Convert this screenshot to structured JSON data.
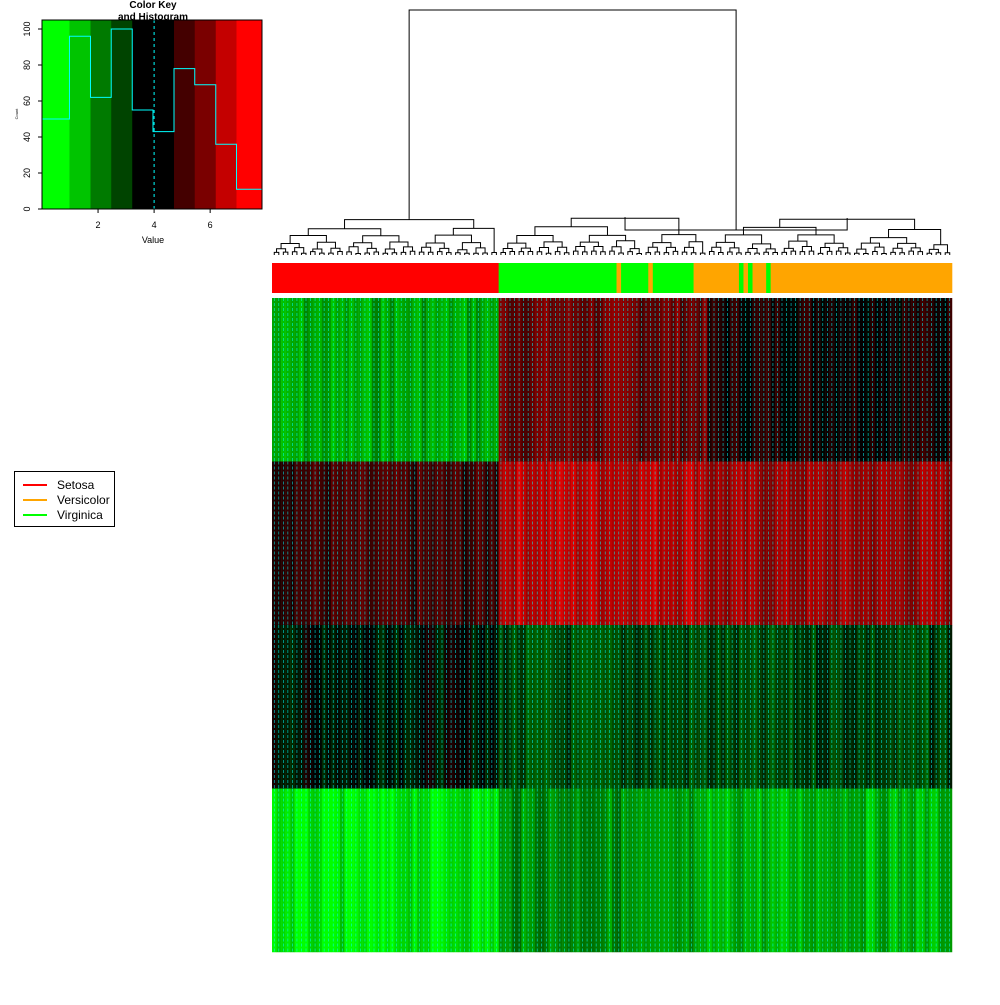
{
  "chart_data": [
    {
      "type": "bar",
      "role": "color-key",
      "title_line1": "Color Key",
      "title_line2": "and Histogram",
      "xlabel": "Value",
      "ylabel": "Count",
      "xlim": [
        0,
        7.85
      ],
      "ylim": [
        0,
        105
      ],
      "x_ticks": [
        "2",
        "4",
        "6"
      ],
      "y_ticks": [
        "0",
        "20",
        "40",
        "60",
        "80",
        "100"
      ],
      "bin_edges": [
        0,
        0.98,
        1.73,
        2.47,
        3.22,
        3.96,
        4.71,
        5.45,
        6.2,
        6.94,
        7.85
      ],
      "values": [
        50,
        96,
        62,
        100,
        55,
        43,
        78,
        69,
        36,
        11
      ],
      "bin_colors": [
        "#00ff00",
        "#00c400",
        "#007a00",
        "#004400",
        "#000000",
        "#000000",
        "#440000",
        "#7a0000",
        "#c40000",
        "#ff0000"
      ],
      "density_line_color": "#00ffff",
      "median_marker": 4
    },
    {
      "type": "heatmap",
      "role": "main-heatmap",
      "n_rows": 4,
      "groups": [
        {
          "name": "Setosa",
          "color": "#ff0000"
        },
        {
          "name": "Versicolor",
          "color": "#ffa500"
        },
        {
          "name": "Virginica",
          "color": "#00ff00"
        }
      ],
      "column_sidebar": [
        {
          "group": "Setosa",
          "count": 50
        },
        {
          "group": "Virginica",
          "count": 26
        },
        {
          "group": "Versicolor",
          "count": 1
        },
        {
          "group": "Virginica",
          "count": 6
        },
        {
          "group": "Versicolor",
          "count": 1
        },
        {
          "group": "Virginica",
          "count": 9
        },
        {
          "group": "Versicolor",
          "count": 10
        },
        {
          "group": "Virginica",
          "count": 1
        },
        {
          "group": "Versicolor",
          "count": 1
        },
        {
          "group": "Virginica",
          "count": 1
        },
        {
          "group": "Versicolor",
          "count": 3
        },
        {
          "group": "Virginica",
          "count": 1
        },
        {
          "group": "Versicolor",
          "count": 40
        }
      ],
      "row_block_values": [
        [
          1.4,
          5.6,
          4.4
        ],
        [
          4.9,
          6.9,
          6.3
        ],
        [
          3.8,
          2.9,
          3.0
        ],
        [
          0.4,
          1.8,
          1.2
        ]
      ],
      "trace_color": "#00ffff",
      "separator_color": "#ffffff"
    }
  ],
  "legend": {
    "items": [
      {
        "label": "Setosa",
        "color": "#ff0000"
      },
      {
        "label": "Versicolor",
        "color": "#ffa500"
      },
      {
        "label": "Virginica",
        "color": "#00ff00"
      }
    ]
  },
  "colors": {
    "low": "#00ff00",
    "mid": "#000000",
    "high": "#ff0000"
  }
}
